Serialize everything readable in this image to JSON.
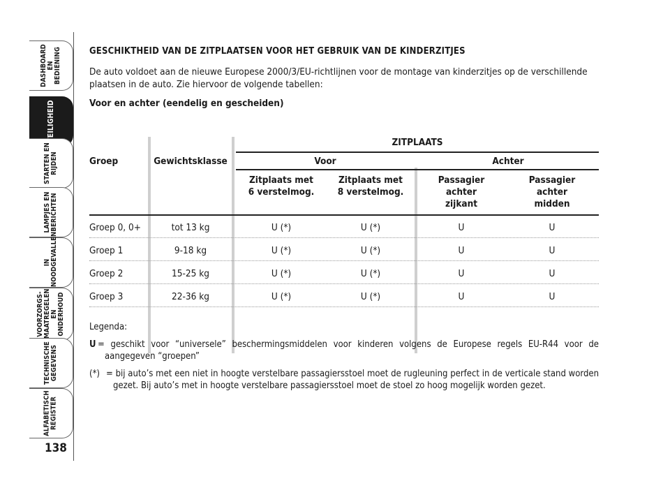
{
  "sidebar": {
    "tabs": [
      {
        "label": "DASHBOARD EN\nBEDIENING",
        "active": false
      },
      {
        "label": "VEILIGHEID",
        "active": true
      },
      {
        "label": "STARTEN EN\nRIJDEN",
        "active": false
      },
      {
        "label": "LAMPJES EN\nBERICHTEN",
        "active": false
      },
      {
        "label": "IN\nNOODGEVALLEN",
        "active": false
      },
      {
        "label": "VOORZORGS-\nMAATREGELEN\nEN ONDERHOUD",
        "active": false
      },
      {
        "label": "TECHNISCHE\nGEGEVENS",
        "active": false
      },
      {
        "label": "ALFABETISCH\nREGISTER",
        "active": false
      }
    ],
    "page_number": "138"
  },
  "content": {
    "title": "GESCHIKTHEID VAN DE ZITPLAATSEN VOOR HET GEBRUIK VAN DE KINDERZITJES",
    "intro": "De auto voldoet aan de nieuwe Europese 2000/3/EU-richtlijnen voor de montage van kinderzitjes op de verschillende plaatsen in de auto. Zie hiervoor de volgende tabellen:",
    "subtitle": "Voor en achter (eendelig en gescheiden)"
  },
  "table": {
    "zitplaats": "ZITPLAATS",
    "col_groep": "Groep",
    "col_gewicht": "Gewichtsklasse",
    "voor": "Voor",
    "achter": "Achter",
    "sub_headers": [
      "Zitplaats met\n6 verstelmog.",
      "Zitplaats met\n8 verstelmog.",
      "Passagier\nachter\nzijkant",
      "Passagier\nachter\nmidden"
    ],
    "rows": [
      {
        "groep": "Groep 0, 0+",
        "gewicht": "tot 13 kg",
        "v6": "U (*)",
        "v8": "U (*)",
        "az": "U",
        "am": "U"
      },
      {
        "groep": "Groep 1",
        "gewicht": "9-18 kg",
        "v6": "U (*)",
        "v8": "U (*)",
        "az": "U",
        "am": "U"
      },
      {
        "groep": "Groep 2",
        "gewicht": "15-25 kg",
        "v6": "U (*)",
        "v8": "U (*)",
        "az": "U",
        "am": "U"
      },
      {
        "groep": "Groep 3",
        "gewicht": "22-36 kg",
        "v6": "U (*)",
        "v8": "U (*)",
        "az": "U",
        "am": "U"
      }
    ]
  },
  "legend": {
    "heading": "Legenda:",
    "u_key": "U",
    "u_text": "= geschikt voor “universele” beschermingsmiddelen voor kinderen volgens de Europese regels EU-R44 voor de aangegeven “groepen”",
    "star_key": "(*)",
    "star_text": "= bij auto’s met een niet in hoogte verstelbare passagiersstoel moet de rugleuning perfect in de verticale stand worden gezet. Bij auto’s met in hoogte verstelbare passagiersstoel moet de stoel zo hoog mogelijk worden gezet."
  }
}
